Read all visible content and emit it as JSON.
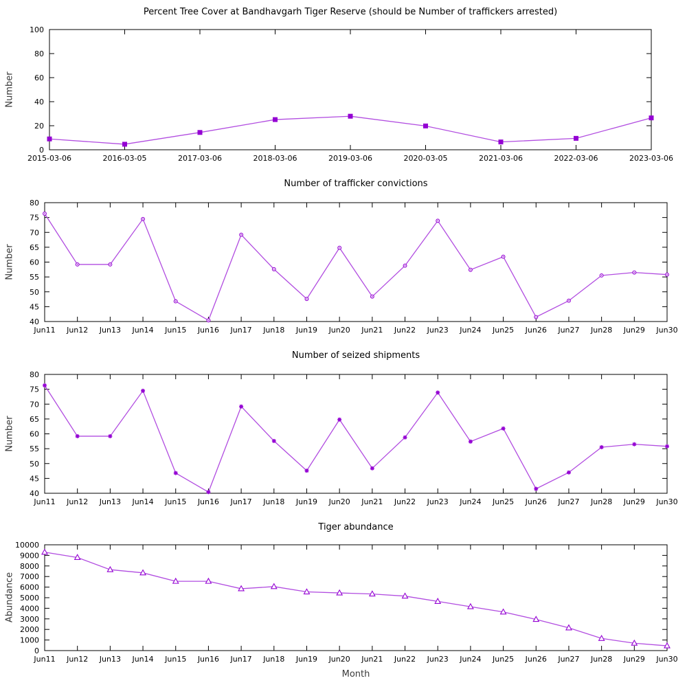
{
  "colors": {
    "line": "#b14ce0",
    "marker": "#9400d3",
    "axis": "#000000",
    "label": "#3a3a3a"
  },
  "chart_data": [
    {
      "type": "line",
      "title": "Percent Tree Cover at Bandhavgarh Tiger Reserve (should be Number of traffickers arrested)",
      "ylabel": "Number",
      "xlabel": "",
      "marker": "filled-square",
      "legend": "none",
      "grid": false,
      "categories": [
        "2015-03-06",
        "2016-03-05",
        "2017-03-06",
        "2018-03-06",
        "2019-03-06",
        "2020-03-05",
        "2021-03-06",
        "2022-03-06",
        "2023-03-06"
      ],
      "values": [
        9,
        4.6,
        14.4,
        25.1,
        27.9,
        19.8,
        6.5,
        9.5,
        26.5
      ],
      "ylim": [
        0,
        100
      ],
      "yticks": [
        0,
        20,
        40,
        60,
        80,
        100
      ]
    },
    {
      "type": "line",
      "title": "Number of trafficker convictions",
      "ylabel": "Number",
      "xlabel": "",
      "marker": "open-circle",
      "legend": "none",
      "grid": false,
      "categories": [
        "Jun11",
        "Jun12",
        "Jun13",
        "Jun14",
        "Jun15",
        "Jun16",
        "Jun17",
        "Jun18",
        "Jun19",
        "Jun20",
        "Jun21",
        "Jun22",
        "Jun23",
        "Jun24",
        "Jun25",
        "Jun26",
        "Jun27",
        "Jun28",
        "Jun29",
        "Jun30"
      ],
      "values": [
        76.3,
        59.2,
        59.2,
        74.5,
        46.8,
        40.4,
        69.2,
        57.6,
        47.6,
        64.8,
        48.4,
        58.8,
        73.9,
        57.4,
        61.8,
        41.5,
        47.0,
        55.5,
        56.5,
        55.8
      ],
      "ylim": [
        40,
        80
      ],
      "yticks": [
        40,
        45,
        50,
        55,
        60,
        65,
        70,
        75,
        80
      ]
    },
    {
      "type": "line",
      "title": "Number of seized shipments",
      "ylabel": "Number",
      "xlabel": "",
      "marker": "asterisk",
      "legend": "none",
      "grid": false,
      "categories": [
        "Jun11",
        "Jun12",
        "Jun13",
        "Jun14",
        "Jun15",
        "Jun16",
        "Jun17",
        "Jun18",
        "Jun19",
        "Jun20",
        "Jun21",
        "Jun22",
        "Jun23",
        "Jun24",
        "Jun25",
        "Jun26",
        "Jun27",
        "Jun28",
        "Jun29",
        "Jun30"
      ],
      "values": [
        76.3,
        59.2,
        59.2,
        74.5,
        46.8,
        40.4,
        69.2,
        57.6,
        47.6,
        64.8,
        48.4,
        58.8,
        73.9,
        57.4,
        61.8,
        41.5,
        47.0,
        55.5,
        56.5,
        55.8
      ],
      "ylim": [
        40,
        80
      ],
      "yticks": [
        40,
        45,
        50,
        55,
        60,
        65,
        70,
        75,
        80
      ]
    },
    {
      "type": "line",
      "title": "Tiger abundance",
      "ylabel": "Abundance",
      "xlabel": "Month",
      "marker": "open-triangle",
      "legend": "none",
      "grid": false,
      "categories": [
        "Jun11",
        "Jun12",
        "Jun13",
        "Jun14",
        "Jun15",
        "Jun16",
        "Jun17",
        "Jun18",
        "Jun19",
        "Jun20",
        "Jun21",
        "Jun22",
        "Jun23",
        "Jun24",
        "Jun25",
        "Jun26",
        "Jun27",
        "Jun28",
        "Jun29",
        "Jun30"
      ],
      "values": [
        9300,
        8800,
        7650,
        7350,
        6550,
        6550,
        5850,
        6050,
        5550,
        5450,
        5350,
        5150,
        4650,
        4150,
        3650,
        2950,
        2150,
        1150,
        700,
        450
      ],
      "ylim": [
        0,
        10000
      ],
      "yticks": [
        0,
        1000,
        2000,
        3000,
        4000,
        5000,
        6000,
        7000,
        8000,
        9000,
        10000
      ]
    }
  ]
}
